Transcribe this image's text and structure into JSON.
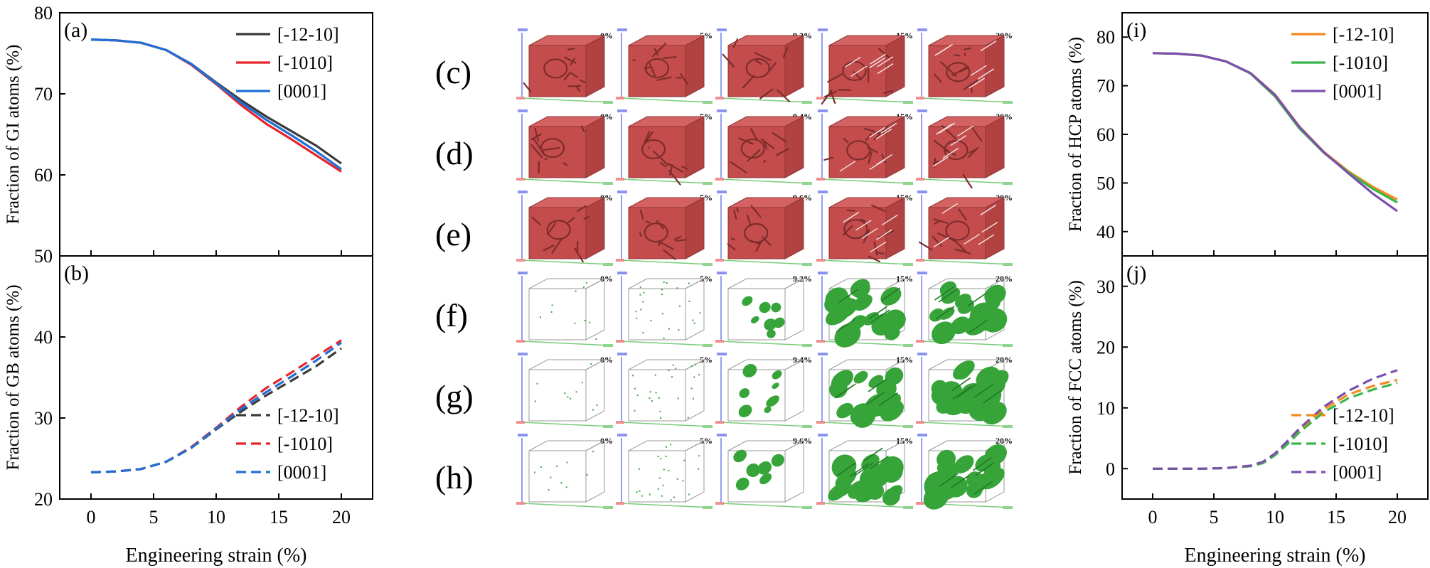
{
  "colors": {
    "gray": "#3a3a3a",
    "red": "#e5252a",
    "blue": "#1f6fd6",
    "orange": "#f38a1e",
    "green": "#39b54a",
    "purple": "#7b4fae",
    "atom_red": "#c24a4a",
    "atom_green": "#36a33a"
  },
  "panels": {
    "c": "(c)",
    "d": "(d)",
    "e": "(e)",
    "f": "(f)",
    "g": "(g)",
    "h": "(h)"
  },
  "snapshot_strains": [
    [
      "0%",
      "5%",
      "9.2%",
      "15%",
      "20%"
    ],
    [
      "0%",
      "5%",
      "9.4%",
      "15%",
      "20%"
    ],
    [
      "0%",
      "5%",
      "9.6%",
      "15%",
      "20%"
    ],
    [
      "0%",
      "5%",
      "9.2%",
      "15%",
      "20%"
    ],
    [
      "0%",
      "5%",
      "9.4%",
      "15%",
      "20%"
    ],
    [
      "0%",
      "5%",
      "9.6%",
      "15%",
      "20%"
    ]
  ],
  "chart_data": [
    {
      "id": "a",
      "panel_label": "(a)",
      "type": "line",
      "ylabel": "Fraction of GI atoms (%)",
      "xlabel": "",
      "xlim": [
        -2.5,
        22.5
      ],
      "ylim": [
        50,
        80
      ],
      "xticks": [
        0,
        5,
        10,
        15,
        20
      ],
      "yticks": [
        50,
        60,
        70,
        80
      ],
      "show_xticklabels": false,
      "legend": "top-right",
      "dashed": false,
      "series": [
        {
          "name": "[-12-10]",
          "color_key": "gray",
          "x": [
            0,
            2,
            4,
            6,
            8,
            10,
            12,
            14,
            16,
            18,
            20
          ],
          "y": [
            76.7,
            76.6,
            76.3,
            75.4,
            73.7,
            71.4,
            69.2,
            67.2,
            65.4,
            63.6,
            61.4
          ]
        },
        {
          "name": "[-1010]",
          "color_key": "red",
          "x": [
            0,
            2,
            4,
            6,
            8,
            10,
            12,
            14,
            16,
            18,
            20
          ],
          "y": [
            76.7,
            76.6,
            76.3,
            75.4,
            73.6,
            71.2,
            68.6,
            66.3,
            64.4,
            62.4,
            60.4
          ]
        },
        {
          "name": "[0001]",
          "color_key": "blue",
          "x": [
            0,
            2,
            4,
            6,
            8,
            10,
            12,
            14,
            16,
            18,
            20
          ],
          "y": [
            76.7,
            76.6,
            76.3,
            75.4,
            73.7,
            71.3,
            68.9,
            66.8,
            64.9,
            62.9,
            60.7
          ]
        }
      ]
    },
    {
      "id": "b",
      "panel_label": "(b)",
      "type": "line",
      "ylabel": "Fraction of GB atoms (%)",
      "xlabel": "Engineering strain (%)",
      "xlim": [
        -2.5,
        22.5
      ],
      "ylim": [
        20,
        50
      ],
      "xticks": [
        0,
        5,
        10,
        15,
        20
      ],
      "yticks": [
        20,
        30,
        40
      ],
      "show_xticklabels": true,
      "legend": "bottom-right",
      "dashed": true,
      "series": [
        {
          "name": "[-12-10]",
          "color_key": "gray",
          "x": [
            0,
            2,
            4,
            6,
            8,
            10,
            12,
            14,
            16,
            18,
            20
          ],
          "y": [
            23.3,
            23.4,
            23.7,
            24.6,
            26.3,
            28.6,
            30.8,
            32.8,
            34.6,
            36.4,
            38.6
          ]
        },
        {
          "name": "[-1010]",
          "color_key": "red",
          "x": [
            0,
            2,
            4,
            6,
            8,
            10,
            12,
            14,
            16,
            18,
            20
          ],
          "y": [
            23.3,
            23.4,
            23.7,
            24.6,
            26.4,
            28.8,
            31.4,
            33.7,
            35.6,
            37.6,
            39.6
          ]
        },
        {
          "name": "[0001]",
          "color_key": "blue",
          "x": [
            0,
            2,
            4,
            6,
            8,
            10,
            12,
            14,
            16,
            18,
            20
          ],
          "y": [
            23.3,
            23.4,
            23.7,
            24.6,
            26.3,
            28.7,
            31.1,
            33.2,
            35.1,
            37.1,
            39.3
          ]
        }
      ]
    },
    {
      "id": "i",
      "panel_label": "(i)",
      "type": "line",
      "ylabel": "Fraction of HCP atoms (%)",
      "xlabel": "",
      "xlim": [
        -2.5,
        22.5
      ],
      "ylim": [
        35,
        85
      ],
      "xticks": [
        0,
        5,
        10,
        15,
        20
      ],
      "yticks": [
        40,
        50,
        60,
        70,
        80
      ],
      "show_xticklabels": false,
      "legend": "top-right",
      "dashed": false,
      "series": [
        {
          "name": "[-12-10]",
          "color_key": "orange",
          "x": [
            0,
            2,
            4,
            6,
            8,
            10,
            12,
            14,
            16,
            18,
            20
          ],
          "y": [
            76.7,
            76.6,
            76.2,
            75.0,
            72.6,
            68.2,
            61.6,
            56.4,
            52.4,
            49.2,
            46.6
          ]
        },
        {
          "name": "[-1010]",
          "color_key": "green",
          "x": [
            0,
            2,
            4,
            6,
            8,
            10,
            12,
            14,
            16,
            18,
            20
          ],
          "y": [
            76.7,
            76.6,
            76.2,
            75.0,
            72.5,
            67.8,
            61.2,
            56.2,
            52.2,
            48.8,
            46.0
          ]
        },
        {
          "name": "[0001]",
          "color_key": "purple",
          "x": [
            0,
            2,
            4,
            6,
            8,
            10,
            12,
            14,
            16,
            18,
            20
          ],
          "y": [
            76.7,
            76.6,
            76.2,
            75.0,
            72.6,
            68.1,
            61.5,
            56.3,
            52.0,
            47.8,
            44.2
          ]
        }
      ]
    },
    {
      "id": "j",
      "panel_label": "(j)",
      "type": "line",
      "ylabel": "Fraction of  FCC atoms (%)",
      "xlabel": "Engineering strain (%)",
      "xlim": [
        -2.5,
        22.5
      ],
      "ylim": [
        -5,
        35
      ],
      "xticks": [
        0,
        5,
        10,
        15,
        20
      ],
      "yticks": [
        0,
        10,
        20,
        30
      ],
      "show_xticklabels": true,
      "legend": "bottom-right",
      "dashed": true,
      "series": [
        {
          "name": "[-12-10]",
          "color_key": "orange",
          "x": [
            0,
            2,
            4,
            6,
            8,
            9,
            10,
            11,
            12,
            14,
            16,
            18,
            20
          ],
          "y": [
            0,
            0,
            0,
            0.1,
            0.4,
            1.0,
            2.4,
            4.3,
            6.4,
            9.8,
            12.2,
            13.6,
            14.6
          ]
        },
        {
          "name": "[-1010]",
          "color_key": "green",
          "x": [
            0,
            2,
            4,
            6,
            8,
            9,
            10,
            11,
            12,
            14,
            16,
            18,
            20
          ],
          "y": [
            0,
            0,
            0,
            0.1,
            0.4,
            0.9,
            2.2,
            4.0,
            6.0,
            9.3,
            11.6,
            13.0,
            14.1
          ]
        },
        {
          "name": "[0001]",
          "color_key": "purple",
          "x": [
            0,
            2,
            4,
            6,
            8,
            9,
            10,
            11,
            12,
            14,
            16,
            18,
            20
          ],
          "y": [
            0,
            0,
            0,
            0.1,
            0.5,
            1.1,
            2.5,
            4.5,
            6.6,
            10.2,
            12.8,
            14.8,
            16.2
          ]
        }
      ]
    }
  ]
}
